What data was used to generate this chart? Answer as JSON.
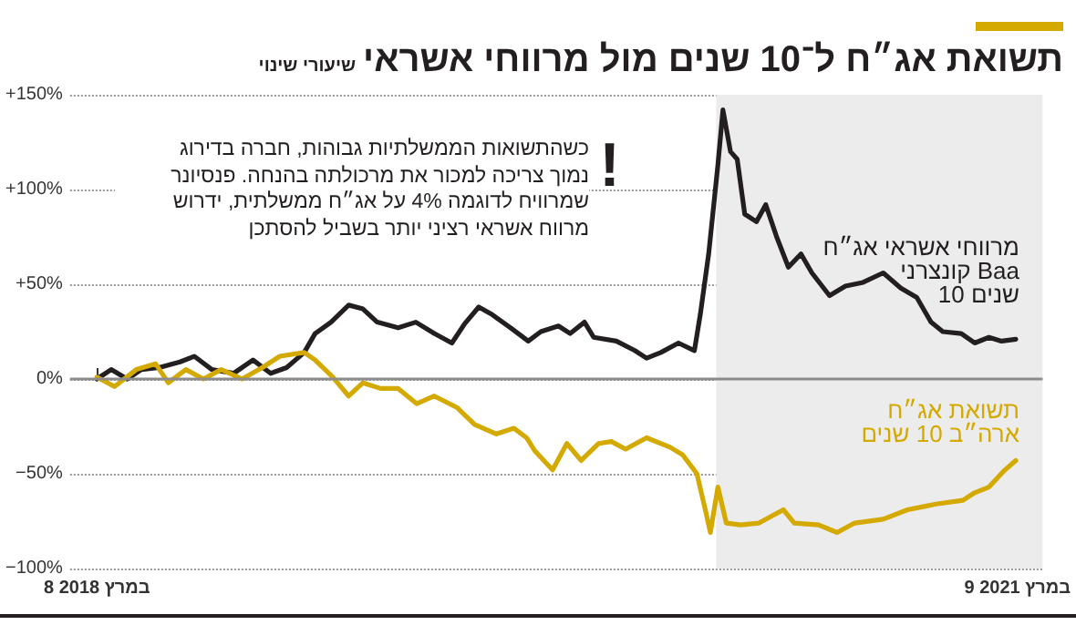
{
  "chart_data": {
    "type": "line",
    "title": "תשואת אג״ח ל־10 שנים מול מרווחי אשראי",
    "subtitle": "שיעורי שינוי",
    "annotations": [
      "!",
      "כשהתשואות הממשלתיות גבוהות, חברה בדירוג\nנמוך צריכה למכור את מרכולתה בהנחה. פנסיונר\nשמרוויח לדוגמה 4% על אג״ח ממשלתית, ידרוש\nמרווח אשראי רציני יותר בשביל להסתכן"
    ],
    "series": [
      {
        "name": "מרווחי אשראי אג״ח\nקונצרני Baa\n10 שנים",
        "color": "#231f20",
        "x": [
          "2018-03-08",
          "2018-03-25",
          "2018-04-13",
          "2018-04-30",
          "2018-05-21",
          "2018-06-15",
          "2018-07-02",
          "2018-07-23",
          "2018-08-18",
          "2018-09-10",
          "2018-10-01",
          "2018-10-20",
          "2018-11-10",
          "2018-11-23",
          "2018-12-12",
          "2019-01-02",
          "2019-01-19",
          "2019-02-05",
          "2019-03-02",
          "2019-03-23",
          "2019-04-14",
          "2019-05-05",
          "2019-05-20",
          "2019-06-06",
          "2019-06-22",
          "2019-07-14",
          "2019-08-04",
          "2019-08-19",
          "2019-09-09",
          "2019-09-23",
          "2019-10-10",
          "2019-10-21",
          "2019-11-17",
          "2019-12-09",
          "2019-12-23",
          "2020-01-09",
          "2020-01-30",
          "2020-02-18",
          "2020-02-25",
          "2020-03-06",
          "2020-03-17",
          "2020-03-23",
          "2020-04-01",
          "2020-04-09",
          "2020-04-18",
          "2020-05-02",
          "2020-05-13",
          "2020-05-26",
          "2020-06-09",
          "2020-06-24",
          "2020-07-07",
          "2020-07-28",
          "2020-08-16",
          "2020-09-06",
          "2020-09-30",
          "2020-10-21",
          "2020-11-09",
          "2020-11-26",
          "2020-12-10",
          "2021-01-01",
          "2021-01-17",
          "2021-02-03",
          "2021-02-18",
          "2021-03-07"
        ],
        "values": [
          0,
          5,
          0,
          5,
          6,
          9,
          12,
          5,
          3,
          10,
          3,
          6,
          14,
          24,
          30,
          39,
          37,
          30,
          27,
          30,
          24,
          19,
          29,
          38,
          34,
          27,
          20,
          25,
          28,
          24,
          30,
          22,
          20,
          15,
          11,
          14,
          19,
          15,
          34,
          66,
          113,
          142,
          120,
          116,
          87,
          83,
          92,
          75,
          59,
          66,
          56,
          44,
          49,
          51,
          56,
          48,
          43,
          30,
          25,
          24,
          19,
          22,
          20,
          21
        ]
      },
      {
        "name": "תשואת אג״ח\nארה״ב 10 שנים",
        "color": "#d4a900",
        "x": [
          "2018-03-08",
          "2018-03-29",
          "2018-04-24",
          "2018-05-17",
          "2018-06-01",
          "2018-06-22",
          "2018-07-13",
          "2018-08-03",
          "2018-08-28",
          "2018-09-21",
          "2018-10-12",
          "2018-11-10",
          "2018-11-23",
          "2018-12-14",
          "2019-01-02",
          "2019-01-19",
          "2019-02-09",
          "2019-03-02",
          "2019-03-24",
          "2019-04-14",
          "2019-05-11",
          "2019-06-01",
          "2019-06-27",
          "2019-07-18",
          "2019-08-02",
          "2019-08-12",
          "2019-09-02",
          "2019-09-19",
          "2019-10-06",
          "2019-10-27",
          "2019-11-11",
          "2019-11-28",
          "2019-12-23",
          "2020-01-20",
          "2020-02-04",
          "2020-02-21",
          "2020-03-02",
          "2020-03-08",
          "2020-03-17",
          "2020-03-27",
          "2020-04-13",
          "2020-05-05",
          "2020-06-03",
          "2020-06-16",
          "2020-07-15",
          "2020-08-06",
          "2020-08-27",
          "2020-09-30",
          "2020-10-29",
          "2020-12-02",
          "2021-01-03",
          "2021-01-17",
          "2021-02-03",
          "2021-02-22",
          "2021-03-07"
        ],
        "values": [
          1,
          -4,
          5,
          8,
          -2,
          5,
          0,
          5,
          0,
          6,
          12,
          14,
          10,
          1,
          -9,
          -2,
          -5,
          -5,
          -13,
          -9,
          -15,
          -24,
          -29,
          -26,
          -31,
          -38,
          -48,
          -34,
          -43,
          -34,
          -33,
          -37,
          -31,
          -36,
          -40,
          -50,
          -69,
          -81,
          -57,
          -76,
          -77,
          -76,
          -69,
          -76,
          -77,
          -81,
          -76,
          -74,
          -69,
          -66,
          -64,
          -60,
          -57,
          -48,
          -43
        ]
      }
    ],
    "xlim": [
      "2018-02-04",
      "2021-04-08"
    ],
    "xticks": [
      {
        "value": "2018-03-08",
        "label": "8 במרץ 2018"
      },
      {
        "value": "2021-03-09",
        "label": "9 במרץ 2021"
      }
    ],
    "ylim": [
      -100,
      150
    ],
    "yticks": [
      {
        "value": -100,
        "label": "−100%"
      },
      {
        "value": -50,
        "label": "−50%"
      },
      {
        "value": 0,
        "label": "0%"
      },
      {
        "value": 50,
        "label": "+50%"
      },
      {
        "value": 100,
        "label": "+100%"
      },
      {
        "value": 150,
        "label": "+150%"
      }
    ],
    "grid": "y",
    "ref_lines": [
      {
        "axis": "y",
        "value": 0,
        "color": "#8c8c8c"
      }
    ],
    "bands": [
      {
        "axis": "x",
        "from": "2020-03-15",
        "to": "2021-04-08",
        "color": "#ececec"
      }
    ],
    "legend": false
  }
}
